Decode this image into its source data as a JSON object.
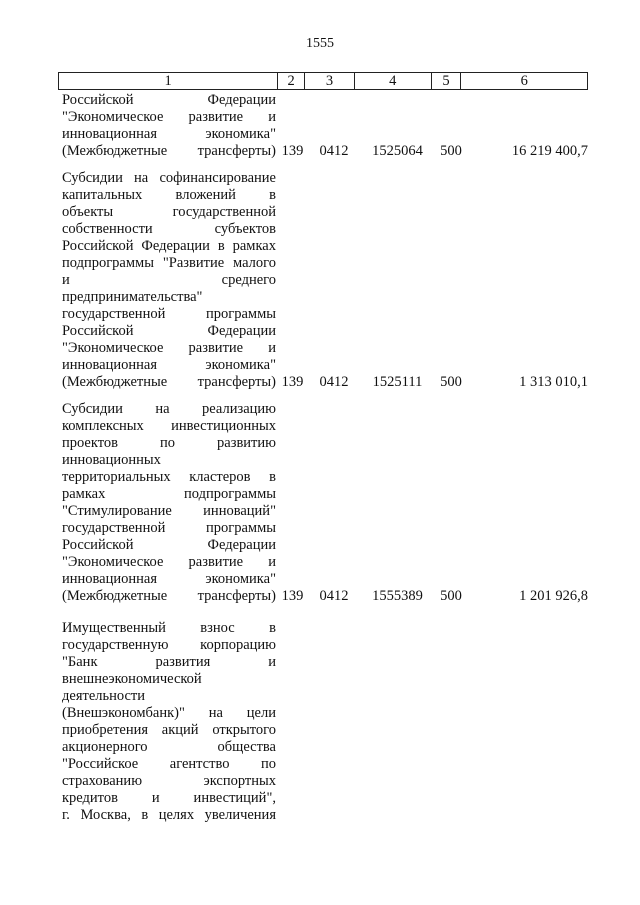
{
  "page_number": "1555",
  "header": [
    "1",
    "2",
    "3",
    "4",
    "5",
    "6"
  ],
  "rows": [
    {
      "lines": [
        "Российской Федерации",
        "\"Экономическое развитие и",
        "инновационная экономика\"",
        "(Межбюджетные трансферты)"
      ],
      "cells": [
        "139",
        "0412",
        "1525064",
        "500",
        "16 219 400,7"
      ]
    },
    {
      "lines": [
        "Субсидии на софинансирование",
        "капитальных вложений в",
        "объекты государственной",
        "собственности субъектов",
        "Российской Федерации в рамках",
        "подпрограммы \"Развитие малого",
        "и среднего",
        "предпринимательства\"",
        "государственной программы",
        "Российской Федерации",
        "\"Экономическое развитие и",
        "инновационная экономика\"",
        "(Межбюджетные трансферты)"
      ],
      "cells": [
        "139",
        "0412",
        "1525111",
        "500",
        "1 313 010,1"
      ]
    },
    {
      "lines": [
        "Субсидии на реализацию",
        "комплексных инвестиционных",
        "проектов по развитию",
        "инновационных",
        "территориальных кластеров в",
        "рамках подпрограммы",
        "\"Стимулирование инноваций\"",
        "государственной программы",
        "Российской Федерации",
        "\"Экономическое развитие и",
        "инновационная экономика\"",
        "(Межбюджетные трансферты)"
      ],
      "cells": [
        "139",
        "0412",
        "1555389",
        "500",
        "1 201 926,8"
      ]
    },
    {
      "lines": [
        "Имущественный взнос в",
        "государственную корпорацию",
        "\"Банк развития и",
        "внешнеэкономической",
        "деятельности",
        "(Внешэкономбанк)\" на цели",
        "приобретения акций открытого",
        "акционерного общества",
        "\"Российское агентство по",
        "страхованию экспортных",
        "кредитов и инвестиций\",",
        "г. Москва, в целях увеличения"
      ],
      "cells": [
        "",
        "",
        "",
        "",
        ""
      ]
    }
  ]
}
